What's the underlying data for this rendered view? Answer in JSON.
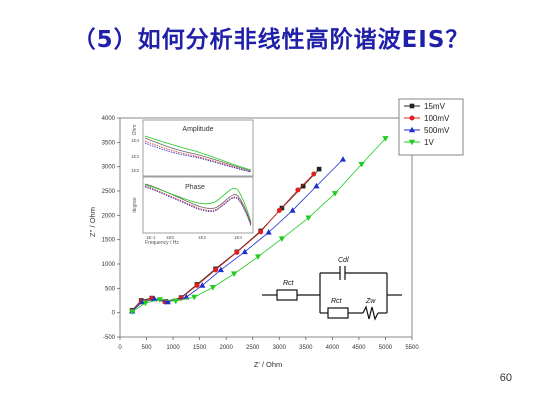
{
  "slide": {
    "title": "（5）如何分析非线性高阶谐波EIS？",
    "page_number": "60"
  },
  "chart_data": {
    "type": "scatter",
    "xlabel": "Z' / Ohm",
    "ylabel": "Z'' / Ohm",
    "xlim": [
      0,
      5500
    ],
    "ylim": [
      -500,
      4000
    ],
    "xticks": [
      0,
      500,
      1000,
      1500,
      2000,
      2500,
      3000,
      3500,
      4000,
      4500,
      5000,
      5500
    ],
    "yticks": [
      -500,
      0,
      500,
      1000,
      1500,
      2000,
      2500,
      3000,
      3500,
      4000
    ],
    "legend_position": "top-right",
    "series": [
      {
        "name": "15mV",
        "color": "#222222",
        "marker": "square",
        "x": [
          230,
          400,
          600,
          850,
          1150,
          1450,
          1800,
          2200,
          2650,
          3050,
          3450,
          3750
        ],
        "y": [
          50,
          250,
          300,
          230,
          310,
          580,
          900,
          1250,
          1680,
          2150,
          2600,
          2950
        ]
      },
      {
        "name": "100mV",
        "color": "#e02020",
        "marker": "circle",
        "x": [
          230,
          400,
          600,
          850,
          1150,
          1450,
          1800,
          2200,
          2650,
          3000,
          3350,
          3650
        ],
        "y": [
          40,
          230,
          290,
          220,
          300,
          560,
          880,
          1240,
          1660,
          2100,
          2520,
          2850
        ]
      },
      {
        "name": "500mV",
        "color": "#1e2fd0",
        "marker": "triangle-up",
        "x": [
          230,
          420,
          650,
          900,
          1250,
          1550,
          1900,
          2350,
          2800,
          3250,
          3700,
          4200
        ],
        "y": [
          30,
          220,
          280,
          220,
          320,
          560,
          880,
          1250,
          1650,
          2100,
          2600,
          3150
        ]
      },
      {
        "name": "1V",
        "color": "#20cc20",
        "marker": "triangle-down",
        "x": [
          230,
          480,
          750,
          1050,
          1400,
          1750,
          2150,
          2600,
          3050,
          3550,
          4050,
          4550,
          5000
        ],
        "y": [
          20,
          200,
          270,
          240,
          320,
          520,
          800,
          1150,
          1520,
          1950,
          2450,
          3050,
          3580
        ]
      }
    ],
    "insets": [
      {
        "title": "Amplitude",
        "ylabel": "Ohm",
        "xlabel": "Frequency / Hz",
        "xticks": [
          "1E-1",
          "1E0",
          "1E2",
          "1E4"
        ],
        "yticks": [
          "1E4",
          "1E3",
          "1E2"
        ]
      },
      {
        "title": "Phase",
        "ylabel": "degree",
        "xlabel": "Frequency / Hz",
        "xticks": [
          "1E-1",
          "1E0",
          "1E2",
          "1E4"
        ],
        "yticks": []
      }
    ],
    "circuit": {
      "labels": [
        "Cdl",
        "Rct",
        "Rct",
        "Zw"
      ]
    }
  }
}
